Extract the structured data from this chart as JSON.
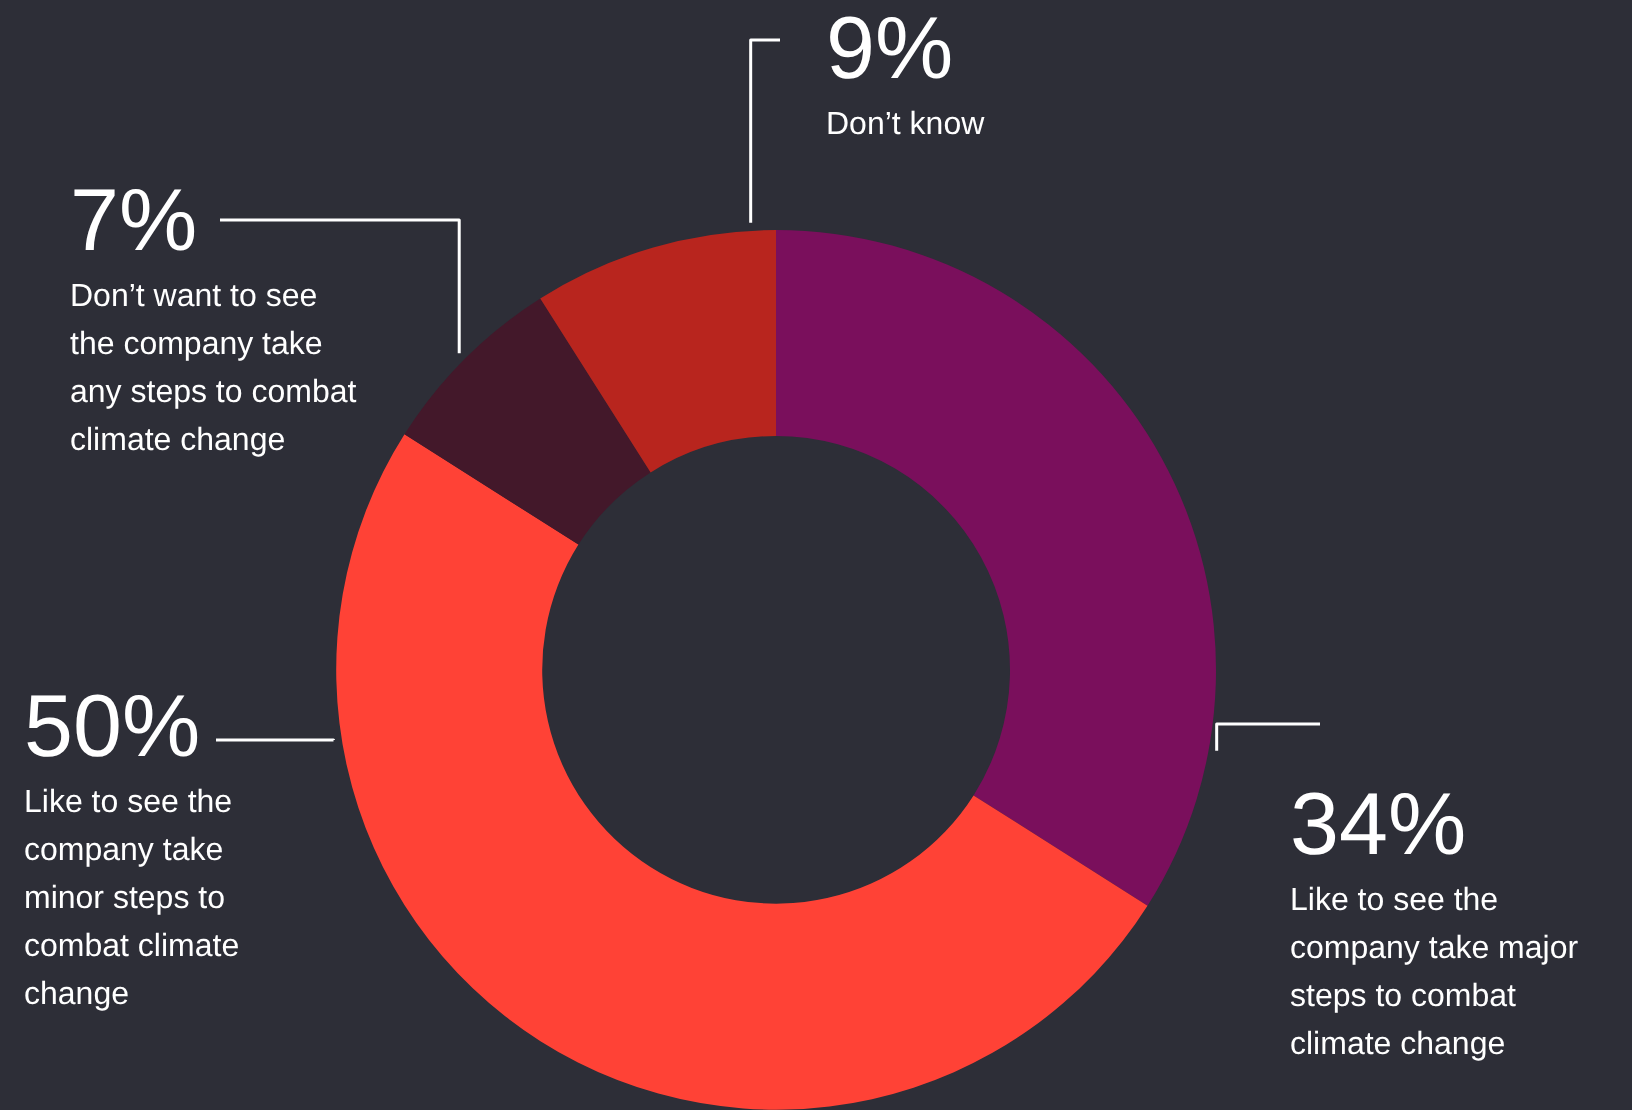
{
  "chart_data": {
    "type": "donut",
    "categories": [
      "Like to see the company take major steps to combat climate change",
      "Like to see the company take minor steps to combat climate change",
      "Don’t want to see the company take any steps to combat climate change",
      "Don’t know"
    ],
    "values": [
      34,
      50,
      7,
      9
    ],
    "colors": [
      "#7a0f5c",
      "#ff4236",
      "#43182a",
      "#b8251e"
    ],
    "value_labels": [
      "34%",
      "50%",
      "7%",
      "9%"
    ]
  }
}
